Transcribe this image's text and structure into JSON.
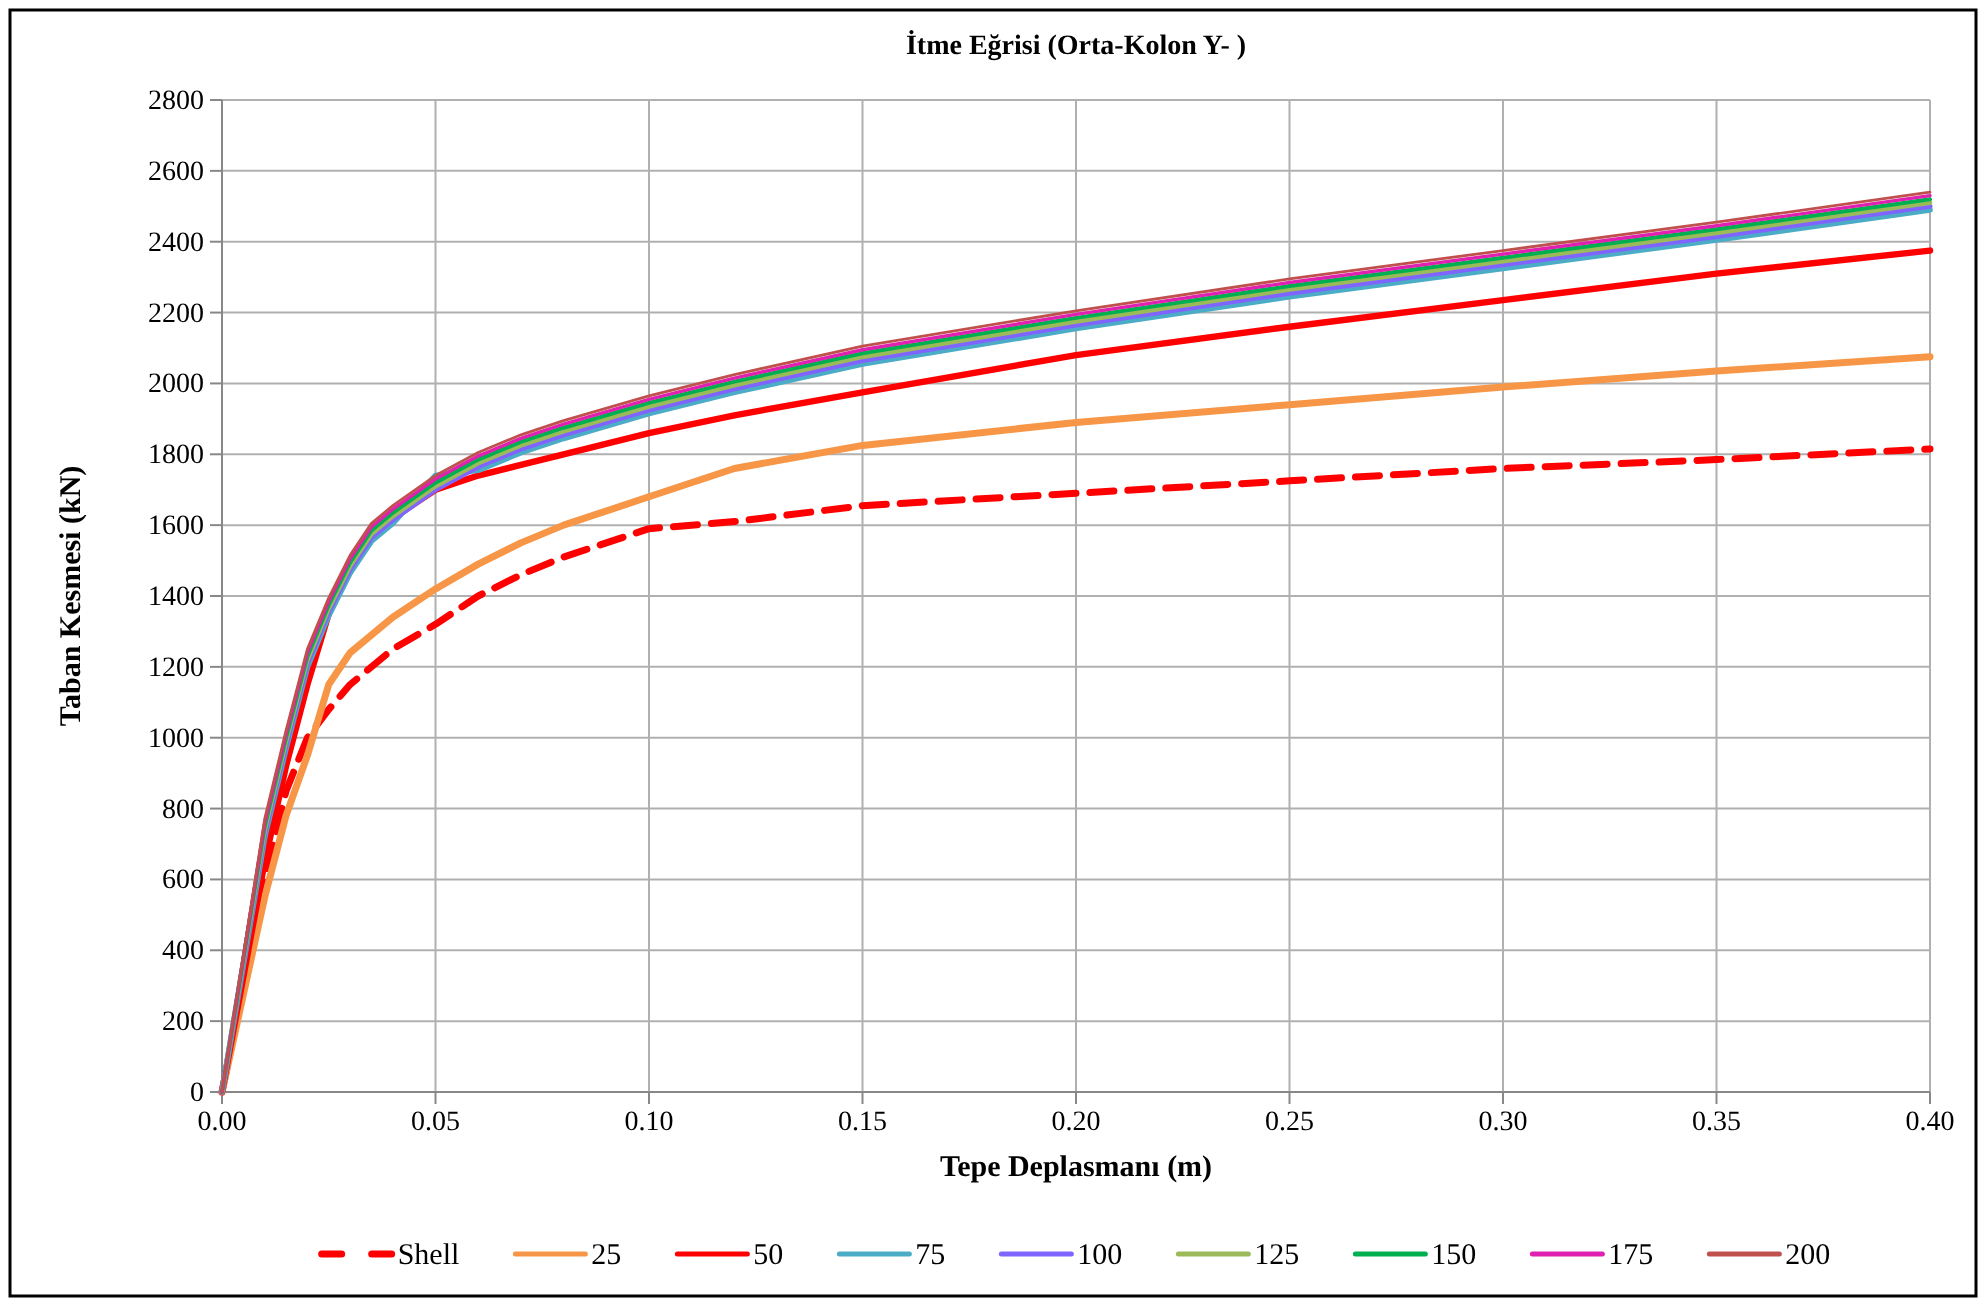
{
  "chart_data": {
    "type": "line",
    "title": "İtme Eğrisi (Orta-Kolon Y- )",
    "xlabel": "Tepe Deplasmanı (m)",
    "ylabel": "Taban Kesmesi (kN)",
    "x": [
      0,
      0.01,
      0.015,
      0.02,
      0.025,
      0.03,
      0.035,
      0.04,
      0.05,
      0.06,
      0.07,
      0.08,
      0.1,
      0.12,
      0.15,
      0.2,
      0.25,
      0.3,
      0.35,
      0.4
    ],
    "xlim": [
      0,
      0.4
    ],
    "xticks": [
      {
        "value": 0,
        "label": "0.00"
      },
      {
        "value": 0.05,
        "label": "0.05"
      },
      {
        "value": 0.1,
        "label": "0.10"
      },
      {
        "value": 0.15,
        "label": "0.15"
      },
      {
        "value": 0.2,
        "label": "0.20"
      },
      {
        "value": 0.25,
        "label": "0.25"
      },
      {
        "value": 0.3,
        "label": "0.30"
      },
      {
        "value": 0.35,
        "label": "0.35"
      },
      {
        "value": 0.4,
        "label": "0.40"
      }
    ],
    "ylim": [
      0,
      2800
    ],
    "yticks": [
      0,
      200,
      400,
      600,
      800,
      1000,
      1200,
      1400,
      1600,
      1800,
      2000,
      2200,
      2400,
      2600,
      2800
    ],
    "grid": true,
    "legend": "bottom",
    "marker": "none",
    "series": [
      {
        "name": "Shell",
        "color": "#ff0000",
        "line_style": "dashed",
        "values": [
          0,
          600,
          850,
          1000,
          1080,
          1150,
          1200,
          1250,
          1320,
          1400,
          1460,
          1510,
          1590,
          1610,
          1655,
          1690,
          1725,
          1760,
          1785,
          1815
        ]
      },
      {
        "name": "25",
        "color": "#f79646",
        "values": [
          0,
          550,
          780,
          950,
          1150,
          1240,
          1290,
          1340,
          1420,
          1490,
          1550,
          1600,
          1680,
          1760,
          1825,
          1890,
          1940,
          1990,
          2035,
          2075
        ]
      },
      {
        "name": "50",
        "color": "#ff0000",
        "values": [
          0,
          650,
          920,
          1150,
          1350,
          1480,
          1570,
          1620,
          1700,
          1740,
          1770,
          1800,
          1860,
          1910,
          1975,
          2080,
          2160,
          2235,
          2310,
          2375
        ]
      },
      {
        "name": "75",
        "color": "#4bacc6",
        "values": [
          0,
          720,
          970,
          1200,
          1345,
          1465,
          1555,
          1605,
          1740,
          1755,
          1805,
          1845,
          1915,
          1975,
          2055,
          2155,
          2245,
          2325,
          2405,
          2490
        ]
      },
      {
        "name": "100",
        "color": "#8064ff",
        "values": [
          0,
          730,
          980,
          1210,
          1355,
          1475,
          1565,
          1615,
          1700,
          1765,
          1815,
          1855,
          1925,
          1985,
          2065,
          2165,
          2255,
          2335,
          2415,
          2500
        ]
      },
      {
        "name": "125",
        "color": "#9bbb59",
        "values": [
          0,
          740,
          990,
          1220,
          1365,
          1485,
          1575,
          1625,
          1710,
          1775,
          1825,
          1865,
          1935,
          1995,
          2075,
          2175,
          2265,
          2345,
          2425,
          2510
        ]
      },
      {
        "name": "150",
        "color": "#00b050",
        "values": [
          0,
          750,
          1000,
          1230,
          1375,
          1495,
          1585,
          1635,
          1720,
          1785,
          1835,
          1875,
          1945,
          2005,
          2085,
          2185,
          2275,
          2355,
          2435,
          2520
        ]
      },
      {
        "name": "175",
        "color": "#e020b0",
        "values": [
          0,
          760,
          1010,
          1240,
          1385,
          1505,
          1595,
          1645,
          1730,
          1795,
          1845,
          1885,
          1955,
          2015,
          2095,
          2195,
          2285,
          2365,
          2445,
          2530
        ]
      },
      {
        "name": "200",
        "color": "#c0504d",
        "values": [
          0,
          770,
          1020,
          1250,
          1395,
          1515,
          1605,
          1655,
          1740,
          1805,
          1855,
          1895,
          1965,
          2025,
          2105,
          2205,
          2295,
          2375,
          2455,
          2540
        ]
      }
    ]
  }
}
